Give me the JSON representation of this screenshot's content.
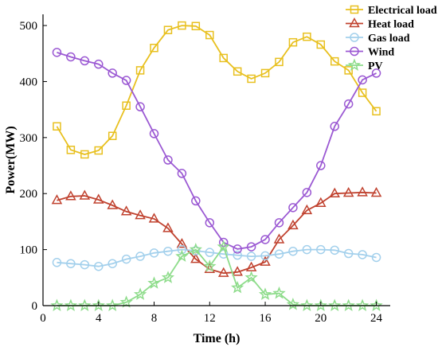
{
  "chart_data": {
    "type": "line",
    "xlabel": "Time (h)",
    "ylabel": "Power(MW)",
    "xlim": [
      0,
      25
    ],
    "ylim": [
      0,
      520
    ],
    "xticks": [
      0,
      4,
      8,
      12,
      16,
      20,
      24
    ],
    "yticks": [
      0,
      100,
      200,
      300,
      400,
      500
    ],
    "grid": false,
    "legend_position": "top-right",
    "x": [
      1,
      2,
      3,
      4,
      5,
      6,
      7,
      8,
      9,
      10,
      11,
      12,
      13,
      14,
      15,
      16,
      17,
      18,
      19,
      20,
      21,
      22,
      23,
      24
    ],
    "series": [
      {
        "name": "Electrical load",
        "color": "#e8c01f",
        "marker": "square",
        "values": [
          320,
          278,
          270,
          277,
          303,
          357,
          420,
          460,
          492,
          500,
          499,
          483,
          442,
          418,
          405,
          415,
          435,
          470,
          480,
          466,
          436,
          420,
          380,
          347
        ]
      },
      {
        "name": "Heat load",
        "color": "#c0422f",
        "marker": "triangle",
        "values": [
          188,
          195,
          196,
          189,
          179,
          168,
          161,
          155,
          138,
          110,
          83,
          65,
          58,
          60,
          68,
          78,
          118,
          143,
          170,
          183,
          200,
          201,
          202,
          201
        ]
      },
      {
        "name": "Gas load",
        "color": "#a3d0ec",
        "marker": "circle",
        "values": [
          77,
          75,
          73,
          70,
          75,
          83,
          88,
          94,
          97,
          100,
          98,
          95,
          92,
          90,
          88,
          89,
          92,
          97,
          100,
          100,
          99,
          93,
          91,
          86
        ]
      },
      {
        "name": "Wind",
        "color": "#9b59d3",
        "marker": "circle",
        "values": [
          452,
          444,
          437,
          431,
          415,
          402,
          355,
          307,
          260,
          236,
          187,
          148,
          113,
          101,
          105,
          118,
          148,
          175,
          202,
          250,
          320,
          360,
          403,
          415
        ]
      },
      {
        "name": "PV",
        "color": "#8edc8b",
        "marker": "star",
        "values": [
          0,
          0,
          0,
          0,
          0,
          6,
          20,
          40,
          50,
          88,
          100,
          70,
          105,
          32,
          50,
          20,
          22,
          2,
          0,
          0,
          0,
          0,
          0,
          0
        ]
      }
    ]
  }
}
